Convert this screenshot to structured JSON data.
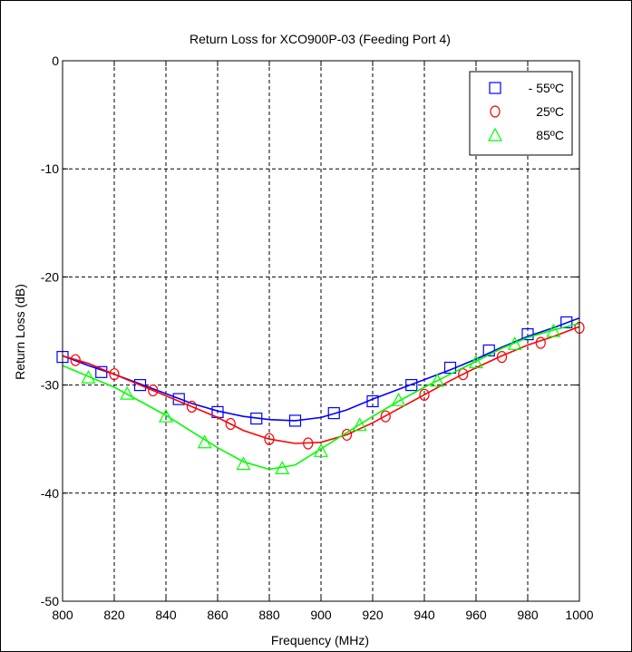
{
  "chart_data": {
    "type": "line",
    "title": "Return Loss for XCO900P-03 (Feeding Port 4)",
    "xlabel": "Frequency (MHz)",
    "ylabel": "Return Loss (dB)",
    "xlim": [
      800,
      1000
    ],
    "ylim": [
      -50,
      0
    ],
    "xticks": [
      "800",
      "820",
      "840",
      "860",
      "880",
      "900",
      "920",
      "940",
      "960",
      "980",
      "1000"
    ],
    "yticks": [
      "0",
      "-10",
      "-20",
      "-30",
      "-40",
      "-50"
    ],
    "grid": true,
    "legend_position": "top-right",
    "series": [
      {
        "name": "- 55ºC",
        "color": "#0000ff",
        "marker": "square",
        "curve": [
          [
            800,
            -27.3
          ],
          [
            810,
            -28.2
          ],
          [
            820,
            -29.0
          ],
          [
            830,
            -29.9
          ],
          [
            840,
            -30.8
          ],
          [
            850,
            -31.7
          ],
          [
            860,
            -32.4
          ],
          [
            870,
            -32.9
          ],
          [
            880,
            -33.2
          ],
          [
            890,
            -33.3
          ],
          [
            900,
            -33.0
          ],
          [
            910,
            -32.3
          ],
          [
            920,
            -31.3
          ],
          [
            930,
            -30.4
          ],
          [
            940,
            -29.5
          ],
          [
            950,
            -28.6
          ],
          [
            960,
            -27.6
          ],
          [
            970,
            -26.5
          ],
          [
            980,
            -25.5
          ],
          [
            990,
            -24.7
          ],
          [
            1000,
            -23.8
          ]
        ],
        "markers": [
          [
            800,
            -27.4
          ],
          [
            815,
            -28.8
          ],
          [
            830,
            -30.0
          ],
          [
            845,
            -31.3
          ],
          [
            860,
            -32.5
          ],
          [
            875,
            -33.1
          ],
          [
            890,
            -33.3
          ],
          [
            905,
            -32.6
          ],
          [
            920,
            -31.5
          ],
          [
            935,
            -30.0
          ],
          [
            950,
            -28.4
          ],
          [
            965,
            -26.8
          ],
          [
            980,
            -25.3
          ],
          [
            995,
            -24.2
          ]
        ]
      },
      {
        "name": "25ºC",
        "color": "#ff0000",
        "marker": "circle",
        "curve": [
          [
            800,
            -27.3
          ],
          [
            810,
            -28.0
          ],
          [
            820,
            -29.0
          ],
          [
            830,
            -30.0
          ],
          [
            840,
            -31.0
          ],
          [
            850,
            -32.0
          ],
          [
            860,
            -33.0
          ],
          [
            870,
            -34.2
          ],
          [
            880,
            -35.0
          ],
          [
            890,
            -35.4
          ],
          [
            900,
            -35.3
          ],
          [
            910,
            -34.6
          ],
          [
            920,
            -33.5
          ],
          [
            930,
            -32.2
          ],
          [
            940,
            -30.9
          ],
          [
            950,
            -29.6
          ],
          [
            960,
            -28.4
          ],
          [
            970,
            -27.3
          ],
          [
            980,
            -26.3
          ],
          [
            990,
            -25.5
          ],
          [
            1000,
            -24.6
          ]
        ],
        "markers": [
          [
            805,
            -27.7
          ],
          [
            820,
            -29.0
          ],
          [
            835,
            -30.5
          ],
          [
            850,
            -32.0
          ],
          [
            865,
            -33.6
          ],
          [
            880,
            -35.0
          ],
          [
            895,
            -35.4
          ],
          [
            910,
            -34.6
          ],
          [
            925,
            -32.9
          ],
          [
            940,
            -30.9
          ],
          [
            955,
            -29.0
          ],
          [
            970,
            -27.4
          ],
          [
            985,
            -26.1
          ],
          [
            1000,
            -24.7
          ]
        ]
      },
      {
        "name": "85ºC",
        "color": "#00ff00",
        "marker": "triangle",
        "curve": [
          [
            800,
            -28.2
          ],
          [
            810,
            -29.2
          ],
          [
            820,
            -30.2
          ],
          [
            830,
            -31.5
          ],
          [
            840,
            -32.8
          ],
          [
            850,
            -34.3
          ],
          [
            860,
            -35.8
          ],
          [
            870,
            -37.1
          ],
          [
            880,
            -37.8
          ],
          [
            890,
            -37.4
          ],
          [
            900,
            -35.9
          ],
          [
            910,
            -34.4
          ],
          [
            920,
            -32.9
          ],
          [
            930,
            -31.5
          ],
          [
            940,
            -30.2
          ],
          [
            950,
            -29.0
          ],
          [
            960,
            -27.8
          ],
          [
            970,
            -26.6
          ],
          [
            980,
            -25.6
          ],
          [
            990,
            -24.9
          ],
          [
            1000,
            -24.3
          ]
        ],
        "markers": [
          [
            810,
            -29.3
          ],
          [
            825,
            -30.8
          ],
          [
            840,
            -32.9
          ],
          [
            855,
            -35.3
          ],
          [
            870,
            -37.3
          ],
          [
            885,
            -37.7
          ],
          [
            900,
            -36.1
          ],
          [
            915,
            -33.7
          ],
          [
            930,
            -31.4
          ],
          [
            945,
            -29.6
          ],
          [
            960,
            -27.9
          ],
          [
            975,
            -26.2
          ],
          [
            990,
            -25.0
          ]
        ]
      }
    ]
  }
}
